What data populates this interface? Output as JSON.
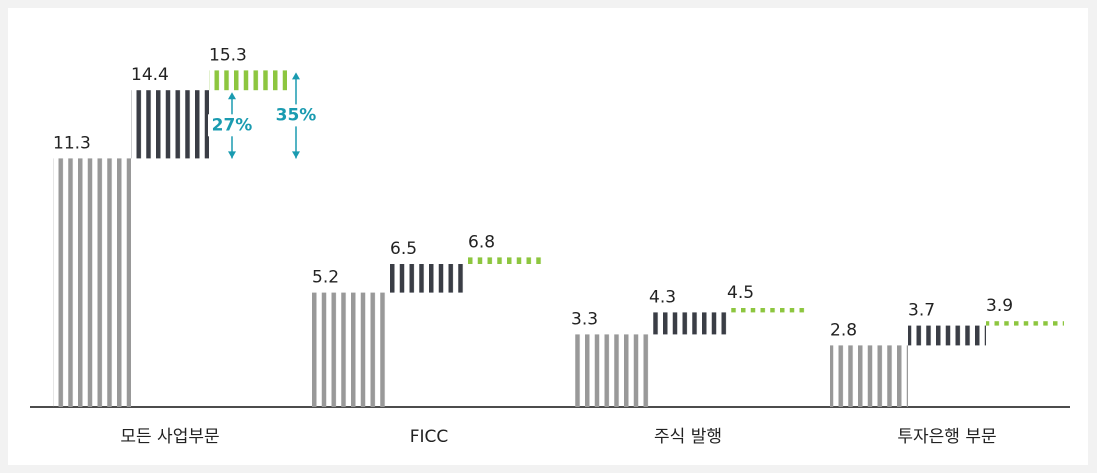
{
  "chart_data": {
    "type": "waterfall_bar",
    "categories": [
      "모든 사업부문",
      "FICC",
      "주식 발행",
      "투자은행 부문"
    ],
    "series": [
      {
        "color": "#999999",
        "values": [
          11.3,
          5.2,
          3.3,
          2.8
        ]
      },
      {
        "color": "#3a3d45",
        "values": [
          14.4,
          6.5,
          4.3,
          3.7
        ]
      },
      {
        "color": "#8dc63f",
        "values": [
          15.3,
          6.8,
          4.5,
          3.9
        ]
      }
    ],
    "annotations": [
      "27%",
      "35%"
    ],
    "annotation_color": "#1a9bb0",
    "ylim": [
      0,
      18
    ]
  }
}
